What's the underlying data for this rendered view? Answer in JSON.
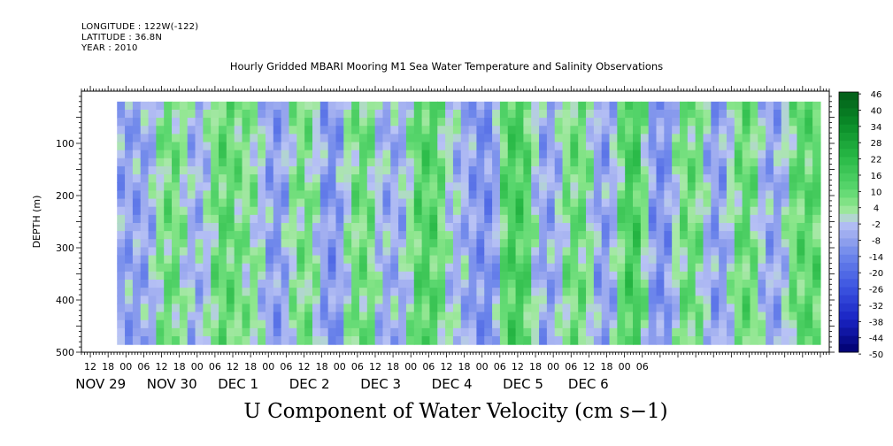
{
  "header": {
    "longitude": "LONGITUDE : 122W(-122)",
    "latitude": "LATITUDE : 36.8N",
    "year": "YEAR : 2010",
    "title": "Hourly Gridded MBARI Mooring M1 Sea Water Temperature and Salinity Observations"
  },
  "chart_data": {
    "type": "heatmap",
    "title": "Hourly Gridded MBARI Mooring M1 Sea Water Temperature and Salinity Observations",
    "bottom_title": "U Component of Water Velocity (cm s−1)",
    "xlabel": "",
    "ylabel": "DEPTH (m)",
    "x_hour_ticks": [
      "12",
      "18",
      "00",
      "06",
      "12",
      "18",
      "00",
      "06",
      "12",
      "18",
      "00",
      "06",
      "12",
      "18",
      "00",
      "06",
      "12",
      "18",
      "00",
      "06",
      "12",
      "18",
      "00",
      "06",
      "12",
      "18",
      "00",
      "06",
      "12",
      "18",
      "00",
      "06"
    ],
    "x_day_labels": [
      "NOV 29",
      "NOV 30",
      "DEC  1",
      "DEC  2",
      "DEC  3",
      "DEC  4",
      "DEC  5",
      "DEC  6"
    ],
    "x_range_hours": [
      -15,
      237
    ],
    "data_x_range_hours": [
      -3,
      234
    ],
    "y_ticks": [
      100,
      200,
      300,
      400,
      500
    ],
    "ylim": [
      500,
      0
    ],
    "data_y_range": [
      20,
      485
    ],
    "colorbar": {
      "labels": [
        "46",
        "40",
        "34",
        "28",
        "22",
        "16",
        "10",
        "4",
        "-2",
        "-8",
        "-14",
        "-20",
        "-26",
        "-32",
        "-38",
        "-44",
        "-50"
      ],
      "levels": [
        46,
        43,
        40,
        37,
        34,
        31,
        28,
        25,
        22,
        19,
        16,
        13,
        10,
        7,
        4,
        1,
        -2,
        -5,
        -8,
        -11,
        -14,
        -17,
        -20,
        -23,
        -26,
        -29,
        -32,
        -35,
        -38,
        -41,
        -44,
        -47,
        -50
      ],
      "range": [
        -50,
        49
      ]
    },
    "field_summary": "Alternating bands of eastward (green, positive) and westward (blue, negative) velocity through depth; values mostly between -15 and +15 cm/s with stronger positive patches near DEC 2, DEC 3 and DEC 4.",
    "bands": [
      {
        "hour": 6,
        "u": -8
      },
      {
        "hour": 15,
        "u": 8
      },
      {
        "hour": 24,
        "u": -6
      },
      {
        "hour": 33,
        "u": 10
      },
      {
        "hour": 42,
        "u": 4
      },
      {
        "hour": 50,
        "u": -10
      },
      {
        "hour": 60,
        "u": 6
      },
      {
        "hour": 70,
        "u": -12
      },
      {
        "hour": 78,
        "u": 8
      },
      {
        "hour": 90,
        "u": -6
      },
      {
        "hour": 102,
        "u": 12
      },
      {
        "hour": 112,
        "u": -4
      },
      {
        "hour": 120,
        "u": -12
      },
      {
        "hour": 132,
        "u": 14
      },
      {
        "hour": 142,
        "u": -8
      },
      {
        "hour": 152,
        "u": 8
      },
      {
        "hour": 162,
        "u": -10
      },
      {
        "hour": 170,
        "u": 16
      },
      {
        "hour": 180,
        "u": -12
      },
      {
        "hour": 190,
        "u": 8
      },
      {
        "hour": 200,
        "u": -10
      },
      {
        "hour": 208,
        "u": 10
      },
      {
        "hour": 218,
        "u": -8
      },
      {
        "hour": 228,
        "u": 10
      }
    ]
  }
}
